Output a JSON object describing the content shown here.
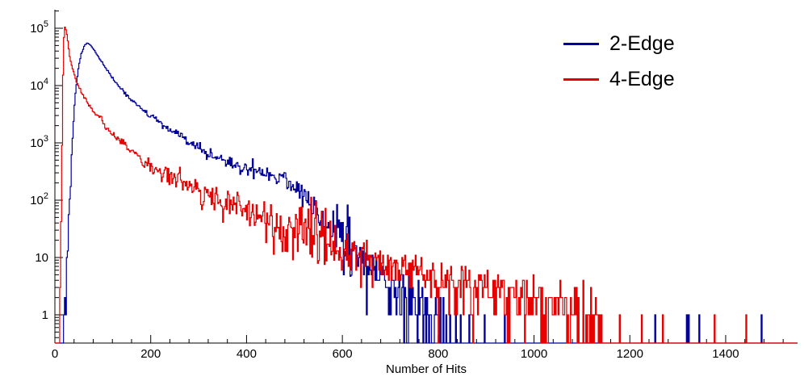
{
  "figure": {
    "background": "#ffffff",
    "axis_color": "#000000"
  },
  "legend": {
    "items": [
      {
        "label": "2-Edge",
        "color": "#000099"
      },
      {
        "label": "4-Edge",
        "color": "#e60000"
      }
    ]
  },
  "chart_data": {
    "type": "histogram-line",
    "title": "",
    "x_axis": {
      "label": "Number of Hits",
      "min": 0,
      "max": 1550,
      "major_ticks": [
        0,
        200,
        400,
        600,
        800,
        1000,
        1200,
        1400
      ],
      "minor_step": 40
    },
    "y_axis": {
      "scale": "log",
      "min": 0.32,
      "max": 210000,
      "ticks": [
        {
          "value": 1,
          "base": "1"
        },
        {
          "value": 10,
          "base": "10"
        },
        {
          "value": 100,
          "base": "10",
          "exp": "2"
        },
        {
          "value": 1000,
          "base": "10",
          "exp": "3"
        },
        {
          "value": 10000,
          "base": "10",
          "exp": "4"
        },
        {
          "value": 100000,
          "base": "10",
          "exp": "5"
        }
      ]
    },
    "bin_width": 2,
    "noise": {
      "seed": 12345,
      "sigma_scale": 3,
      "poisson_below": 15
    },
    "series": [
      {
        "name": "2-Edge",
        "color": "#000099",
        "anchors": [
          [
            18,
            0.4
          ],
          [
            24,
            3
          ],
          [
            30,
            60
          ],
          [
            36,
            900
          ],
          [
            42,
            6000
          ],
          [
            48,
            18000
          ],
          [
            55,
            35000
          ],
          [
            62,
            50000
          ],
          [
            68,
            55000
          ],
          [
            75,
            50000
          ],
          [
            85,
            38000
          ],
          [
            95,
            28000
          ],
          [
            110,
            18000
          ],
          [
            130,
            10500
          ],
          [
            150,
            6800
          ],
          [
            175,
            4300
          ],
          [
            200,
            2900
          ],
          [
            230,
            1900
          ],
          [
            260,
            1300
          ],
          [
            290,
            900
          ],
          [
            320,
            650
          ],
          [
            350,
            500
          ],
          [
            380,
            400
          ],
          [
            410,
            330
          ],
          [
            440,
            300
          ],
          [
            470,
            260
          ],
          [
            500,
            170
          ],
          [
            530,
            95
          ],
          [
            560,
            50
          ],
          [
            590,
            26
          ],
          [
            620,
            15
          ],
          [
            650,
            8
          ],
          [
            680,
            5
          ],
          [
            710,
            3
          ],
          [
            740,
            1.8
          ],
          [
            770,
            1.0
          ],
          [
            800,
            0.55
          ],
          [
            840,
            0.25
          ],
          [
            880,
            0.1
          ],
          [
            950,
            0.04
          ],
          [
            1050,
            0.025
          ],
          [
            1200,
            0.02
          ],
          [
            1400,
            0.02
          ],
          [
            1550,
            0.02
          ]
        ]
      },
      {
        "name": "4-Edge",
        "color": "#e60000",
        "anchors": [
          [
            10,
            0.4
          ],
          [
            13,
            30
          ],
          [
            15,
            800
          ],
          [
            17,
            15000
          ],
          [
            19,
            70000
          ],
          [
            21,
            105000
          ],
          [
            24,
            90000
          ],
          [
            27,
            60000
          ],
          [
            31,
            32000
          ],
          [
            36,
            21000
          ],
          [
            42,
            14000
          ],
          [
            50,
            9500
          ],
          [
            60,
            6500
          ],
          [
            72,
            4500
          ],
          [
            85,
            3200
          ],
          [
            100,
            2200
          ],
          [
            120,
            1500
          ],
          [
            140,
            1050
          ],
          [
            165,
            700
          ],
          [
            190,
            450
          ],
          [
            220,
            330
          ],
          [
            250,
            240
          ],
          [
            285,
            170
          ],
          [
            320,
            120
          ],
          [
            360,
            85
          ],
          [
            400,
            60
          ],
          [
            450,
            40
          ],
          [
            500,
            27
          ],
          [
            550,
            19
          ],
          [
            600,
            14
          ],
          [
            650,
            10
          ],
          [
            700,
            7.5
          ],
          [
            750,
            5.5
          ],
          [
            800,
            4.3
          ],
          [
            850,
            3.4
          ],
          [
            900,
            2.7
          ],
          [
            950,
            2.2
          ],
          [
            1000,
            1.8
          ],
          [
            1050,
            1.4
          ],
          [
            1100,
            1.0
          ],
          [
            1130,
            0.6
          ],
          [
            1160,
            0.25
          ],
          [
            1200,
            0.1
          ],
          [
            1300,
            0.04
          ],
          [
            1450,
            0.02
          ],
          [
            1550,
            0.015
          ]
        ]
      }
    ]
  }
}
